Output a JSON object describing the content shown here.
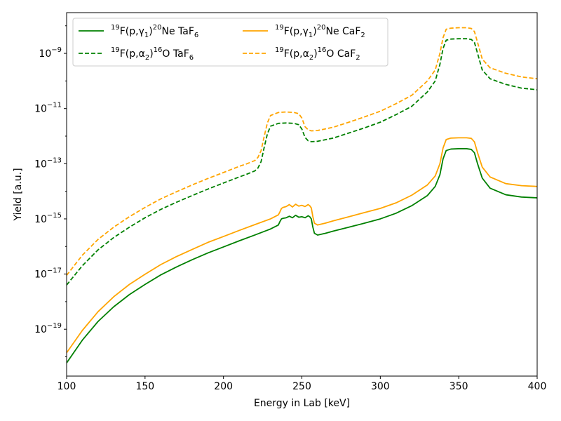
{
  "chart_data": {
    "type": "line",
    "xlabel": "Energy in Lab [keV]",
    "ylabel": "Yield [a.u.]",
    "xlim": [
      100,
      400
    ],
    "ylim": [
      2e-21,
      3e-08
    ],
    "yscale": "log",
    "grid": false,
    "legend_position": "top-left",
    "legend_columns": 2,
    "x_ticks": [
      100,
      150,
      200,
      250,
      300,
      350,
      400
    ],
    "x_tick_labels": [
      "100",
      "150",
      "200",
      "250",
      "300",
      "350",
      "400"
    ],
    "y_ticks": [
      1e-19,
      1e-17,
      1e-15,
      1e-13,
      1e-11,
      1e-09
    ],
    "y_tick_labels": [
      {
        "base": "10",
        "exp": "−19"
      },
      {
        "base": "10",
        "exp": "−17"
      },
      {
        "base": "10",
        "exp": "−15"
      },
      {
        "base": "10",
        "exp": "−13"
      },
      {
        "base": "10",
        "exp": "−11"
      },
      {
        "base": "10",
        "exp": "−9"
      }
    ],
    "series": [
      {
        "name": "19F(p,γ1)20Ne TaF6",
        "label": {
          "pre_sup": "19",
          "main": "F(p,",
          "greek": "γ",
          "greek_sub": "1",
          "close": ")",
          "mid_sup": "20",
          "rest": "Ne TaF",
          "rest_sub": "6"
        },
        "color": "#008000",
        "dash": "solid",
        "x": [
          100,
          110,
          120,
          130,
          140,
          150,
          160,
          170,
          180,
          190,
          200,
          210,
          220,
          230,
          235,
          236,
          237,
          238,
          240,
          242,
          244,
          246,
          248,
          250,
          252,
          254,
          255,
          256,
          257,
          258,
          260,
          265,
          270,
          280,
          290,
          300,
          310,
          320,
          330,
          335,
          338,
          340,
          342,
          345,
          350,
          355,
          358,
          360,
          362,
          365,
          370,
          380,
          390,
          400
        ],
        "y": [
          6e-21,
          4e-20,
          1.9e-19,
          6.5e-19,
          1.8e-18,
          4.2e-18,
          9.3e-18,
          1.8e-17,
          3.3e-17,
          5.8e-17,
          9.6e-17,
          1.6e-16,
          2.6e-16,
          4.3e-16,
          6e-16,
          8e-16,
          1e-15,
          1.05e-15,
          1.1e-15,
          1.25e-15,
          1.1e-15,
          1.35e-15,
          1.15e-15,
          1.2e-15,
          1.1e-15,
          1.3e-15,
          1.2e-15,
          1e-15,
          5e-16,
          3e-16,
          2.6e-16,
          3e-16,
          3.6e-16,
          5e-16,
          7e-16,
          1e-15,
          1.6e-15,
          3e-15,
          7e-15,
          1.5e-14,
          4e-14,
          1.5e-13,
          3e-13,
          3.4e-13,
          3.5e-13,
          3.5e-13,
          3.3e-13,
          2.5e-13,
          1e-13,
          3e-14,
          1.3e-14,
          7.5e-15,
          6.2e-15,
          5.8e-15
        ]
      },
      {
        "name": "19F(p,α2)16O TaF6",
        "label": {
          "pre_sup": "19",
          "main": "F(p,",
          "greek": "α",
          "greek_sub": "2",
          "close": ")",
          "mid_sup": "16",
          "rest": "O TaF",
          "rest_sub": "6"
        },
        "color": "#008000",
        "dash": "dashed",
        "x": [
          100,
          110,
          120,
          130,
          140,
          150,
          160,
          170,
          180,
          190,
          200,
          210,
          215,
          220,
          222,
          224,
          226,
          228,
          230,
          235,
          240,
          245,
          248,
          250,
          252,
          254,
          256,
          260,
          270,
          280,
          290,
          300,
          310,
          320,
          330,
          335,
          338,
          340,
          342,
          345,
          350,
          355,
          358,
          360,
          362,
          365,
          370,
          380,
          390,
          400
        ],
        "y": [
          4e-18,
          2e-17,
          7.5e-17,
          2.1e-16,
          5e-16,
          1.1e-15,
          2.2e-15,
          4e-15,
          7e-15,
          1.2e-14,
          2e-14,
          3.3e-14,
          4.2e-14,
          5.5e-14,
          7e-14,
          1.2e-13,
          4e-13,
          1.2e-12,
          2.3e-12,
          2.9e-12,
          3e-12,
          2.9e-12,
          2.6e-12,
          1.8e-12,
          9e-13,
          6.8e-13,
          6.3e-13,
          6.5e-13,
          8.5e-13,
          1.3e-12,
          2e-12,
          3.2e-12,
          6e-12,
          1.2e-11,
          4e-11,
          1e-10,
          4e-10,
          1.5e-09,
          3e-09,
          3.3e-09,
          3.4e-09,
          3.4e-09,
          3.2e-09,
          2.5e-09,
          1e-09,
          2.5e-10,
          1.2e-10,
          7.5e-11,
          5.5e-11,
          4.8e-11
        ]
      },
      {
        "name": "19F(p,γ1)20Ne CaF2",
        "label": {
          "pre_sup": "19",
          "main": "F(p,",
          "greek": "γ",
          "greek_sub": "1",
          "close": ")",
          "mid_sup": "20",
          "rest": "Ne CaF",
          "rest_sub": "2"
        },
        "color": "#ffa500",
        "dash": "solid",
        "x": [
          100,
          110,
          120,
          130,
          140,
          150,
          160,
          170,
          180,
          190,
          200,
          210,
          220,
          230,
          235,
          236,
          237,
          238,
          240,
          242,
          244,
          246,
          248,
          250,
          252,
          254,
          255,
          256,
          257,
          258,
          260,
          265,
          270,
          280,
          290,
          300,
          310,
          320,
          330,
          335,
          338,
          340,
          342,
          345,
          350,
          355,
          358,
          360,
          362,
          365,
          370,
          380,
          390,
          400
        ],
        "y": [
          1.4e-20,
          9e-20,
          4.3e-19,
          1.5e-18,
          4.2e-18,
          9.8e-18,
          2.2e-17,
          4.3e-17,
          7.8e-17,
          1.4e-16,
          2.3e-16,
          3.8e-16,
          6.2e-16,
          1e-15,
          1.4e-15,
          1.8e-15,
          2.4e-15,
          2.6e-15,
          2.8e-15,
          3.3e-15,
          2.7e-15,
          3.4e-15,
          2.9e-15,
          3.1e-15,
          2.8e-15,
          3.3e-15,
          3e-15,
          2.5e-15,
          1.2e-15,
          7e-16,
          6e-16,
          7e-16,
          8.5e-16,
          1.2e-15,
          1.7e-15,
          2.4e-15,
          3.8e-15,
          7.2e-15,
          1.7e-14,
          3.6e-14,
          1e-13,
          3.7e-13,
          7.5e-13,
          8.5e-13,
          8.7e-13,
          8.7e-13,
          8.3e-13,
          6.2e-13,
          2.5e-13,
          7.5e-14,
          3.3e-14,
          1.9e-14,
          1.6e-14,
          1.5e-14
        ]
      },
      {
        "name": "19F(p,α2)16O CaF2",
        "label": {
          "pre_sup": "19",
          "main": "F(p,",
          "greek": "α",
          "greek_sub": "2",
          "close": ")",
          "mid_sup": "16",
          "rest": "O CaF",
          "rest_sub": "2"
        },
        "color": "#ffa500",
        "dash": "dashed",
        "x": [
          100,
          110,
          120,
          130,
          140,
          150,
          160,
          170,
          180,
          190,
          200,
          210,
          215,
          220,
          222,
          224,
          226,
          228,
          230,
          235,
          240,
          245,
          248,
          250,
          252,
          254,
          256,
          260,
          270,
          280,
          290,
          300,
          310,
          320,
          330,
          335,
          338,
          340,
          342,
          345,
          350,
          355,
          358,
          360,
          362,
          365,
          370,
          380,
          390,
          400
        ],
        "y": [
          9e-18,
          4.8e-17,
          1.8e-16,
          5e-16,
          1.2e-15,
          2.6e-15,
          5.3e-15,
          9.6e-15,
          1.7e-14,
          2.9e-14,
          4.8e-14,
          8e-14,
          1e-13,
          1.3e-13,
          1.7e-13,
          3e-13,
          1e-12,
          3e-12,
          5.6e-12,
          7.2e-12,
          7.5e-12,
          7.2e-12,
          6.5e-12,
          4.5e-12,
          2.2e-12,
          1.7e-12,
          1.55e-12,
          1.6e-12,
          2.1e-12,
          3.2e-12,
          5e-12,
          8e-12,
          1.5e-11,
          3e-11,
          1e-10,
          2.5e-10,
          1e-09,
          3.7e-09,
          7.5e-09,
          8.2e-09,
          8.5e-09,
          8.5e-09,
          8e-09,
          6.2e-09,
          2.5e-09,
          6.2e-10,
          3e-10,
          1.9e-10,
          1.4e-10,
          1.2e-10
        ]
      }
    ]
  }
}
